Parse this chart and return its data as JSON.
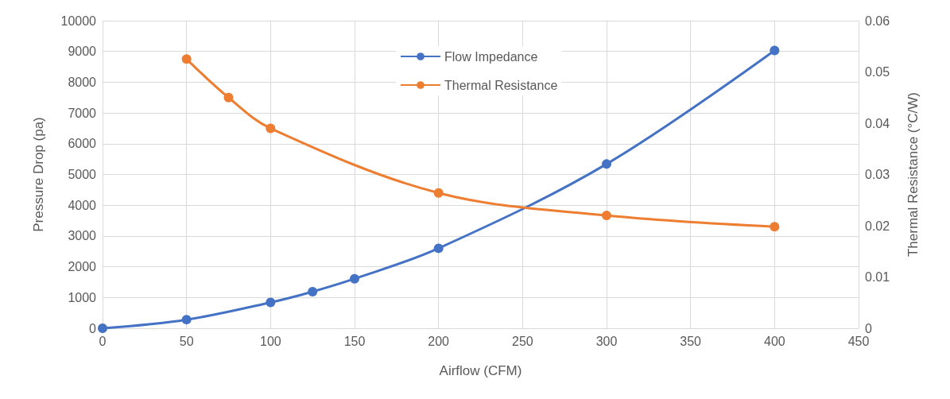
{
  "chart_data": {
    "type": "line",
    "xlabel": "Airflow (CFM)",
    "ylabel": "Pressure Drop (pa)",
    "y2label": "Thermal Resistance (°C/W)",
    "xlim": [
      0,
      450
    ],
    "xticks": [
      0,
      50,
      100,
      150,
      200,
      250,
      300,
      350,
      400,
      450
    ],
    "ylim": [
      0,
      10000
    ],
    "yticks": [
      0,
      1000,
      2000,
      3000,
      4000,
      5000,
      6000,
      7000,
      8000,
      9000,
      10000
    ],
    "y2lim": [
      0,
      0.06
    ],
    "y2ticks": [
      0,
      0.01,
      0.02,
      0.03,
      0.04,
      0.05,
      0.06
    ],
    "grid": true,
    "legend": "top",
    "marker": "circle",
    "line_style": "solid",
    "series": [
      {
        "name": "Flow Impedance",
        "color": "#4472c4",
        "x": [
          0,
          50,
          100,
          125,
          150,
          200,
          300,
          400
        ],
        "values": [
          0,
          280,
          840,
          1190,
          1610,
          2600,
          5340,
          9030
        ]
      },
      {
        "name": "Thermal Resistance",
        "color": "#ed7d31",
        "axis": "y2",
        "x": [
          50,
          75,
          100,
          200,
          300,
          400
        ],
        "values": [
          0.0525,
          0.045,
          0.039,
          0.0264,
          0.022,
          0.0198
        ]
      }
    ]
  }
}
